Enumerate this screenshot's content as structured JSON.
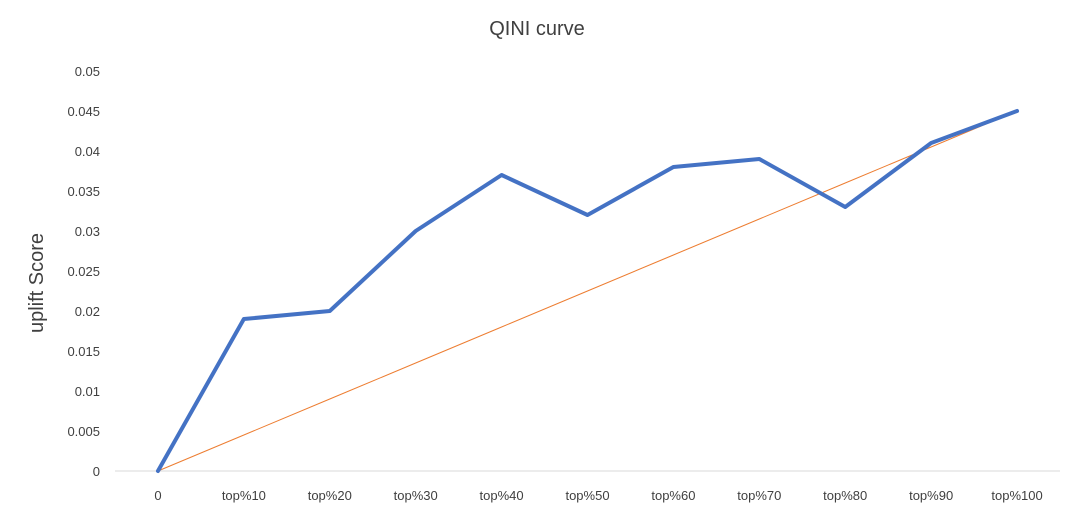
{
  "chart_data": {
    "type": "line",
    "title": "QINI curve",
    "xlabel": "",
    "ylabel": "uplift Score",
    "categories": [
      "0",
      "top%10",
      "top%20",
      "top%30",
      "top%40",
      "top%50",
      "top%60",
      "top%70",
      "top%80",
      "top%90",
      "top%100"
    ],
    "ylim": [
      0,
      0.05
    ],
    "yticks": [
      "0",
      "0.005",
      "0.01",
      "0.015",
      "0.02",
      "0.025",
      "0.03",
      "0.035",
      "0.04",
      "0.045",
      "0.05"
    ],
    "grid": false,
    "legend": "none",
    "series": [
      {
        "color": "#4472C4",
        "values": [
          0,
          0.019,
          0.02,
          0.03,
          0.037,
          0.032,
          0.038,
          0.039,
          0.033,
          0.041,
          0.045
        ]
      },
      {
        "color": "#ED7D31",
        "values": [
          0,
          0.0045,
          0.009,
          0.0135,
          0.018,
          0.0225,
          0.027,
          0.0315,
          0.036,
          0.0405,
          0.045
        ]
      }
    ]
  }
}
